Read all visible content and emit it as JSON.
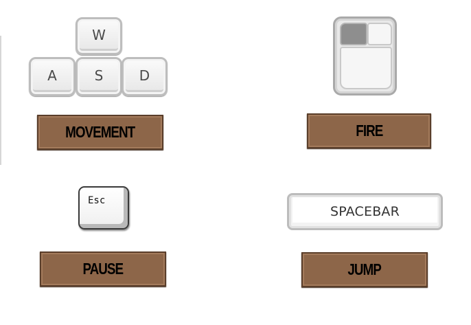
{
  "controls": {
    "movement": {
      "keys": [
        "W",
        "A",
        "S",
        "D"
      ],
      "label": "MOVEMENT"
    },
    "fire": {
      "icon": "mouse-left-click-icon",
      "label": "FIRE"
    },
    "pause": {
      "key": "Esc",
      "label": "PAUSE"
    },
    "jump": {
      "key": "SPACEBAR",
      "label": "JUMP"
    }
  },
  "colors": {
    "label_plate": "#8d6649",
    "label_plate_border": "#5a3e2a",
    "label_text": "#000000",
    "key_face": "#f4f4f4",
    "key_border": "#bdbdbd",
    "mouse_pressed_button": "#8e8e8e"
  }
}
